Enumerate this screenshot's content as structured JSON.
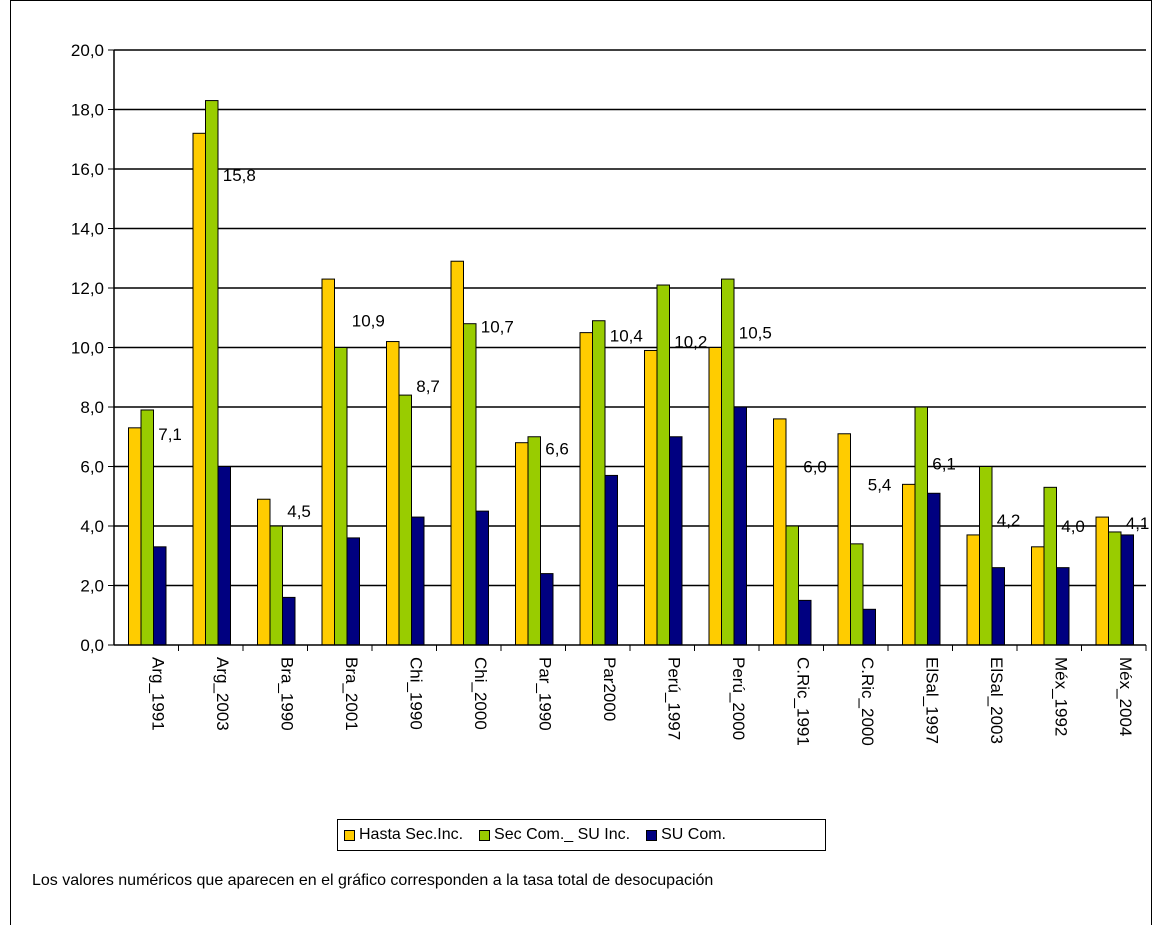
{
  "chart_data": {
    "type": "bar",
    "title": "",
    "xlabel": "",
    "ylabel": "",
    "ylim": [
      0,
      20
    ],
    "yticks": [
      "0,0",
      "2,0",
      "4,0",
      "6,0",
      "8,0",
      "10,0",
      "12,0",
      "14,0",
      "16,0",
      "18,0",
      "20,0"
    ],
    "grid": true,
    "legend_position": "bottom",
    "categories": [
      "Arg_1991",
      "Arg_2003",
      "Bra_1990",
      "Bra_2001",
      "Chi_1990",
      "Chi_2000",
      "Par_1990",
      "Par2000",
      "Perú_1997",
      "Perú_2000",
      "C.Ric_1991",
      "C.Ric_2000",
      "ElSal_1997",
      "ElSal_2003",
      "Méx_1992",
      "Méx_2004"
    ],
    "series": [
      {
        "name": "Hasta Sec.Inc.",
        "color": "#FFCC00",
        "values": [
          7.3,
          17.2,
          4.9,
          12.3,
          10.2,
          12.9,
          6.8,
          10.5,
          9.9,
          10.0,
          7.6,
          7.1,
          5.4,
          3.7,
          3.3,
          4.3
        ]
      },
      {
        "name": "Sec Com._ SU Inc.",
        "color": "#99CC00",
        "values": [
          7.9,
          18.3,
          4.0,
          10.0,
          8.4,
          10.8,
          7.0,
          10.9,
          12.1,
          12.3,
          4.0,
          3.4,
          8.0,
          6.0,
          5.3,
          3.8
        ]
      },
      {
        "name": "SU Com.",
        "color": "#000080",
        "values": [
          3.3,
          6.0,
          1.6,
          3.6,
          4.3,
          4.5,
          2.4,
          5.7,
          7.0,
          8.0,
          1.5,
          1.2,
          5.1,
          2.6,
          2.6,
          3.7
        ]
      }
    ],
    "data_labels": [
      "7,1",
      "15,8",
      "4,5",
      "10,9",
      "8,7",
      "10,7",
      "6,6",
      "10,4",
      "10,2",
      "10,5",
      "6,0",
      "5,4",
      "6,1",
      "4,2",
      "4,0",
      "4,1"
    ],
    "data_label_values": [
      7.1,
      15.8,
      4.5,
      10.9,
      8.7,
      10.7,
      6.6,
      10.4,
      10.2,
      10.5,
      6.0,
      5.4,
      6.1,
      4.2,
      4.0,
      4.1
    ]
  },
  "footnote": "Los valores numéricos que aparecen en el gráfico corresponden a la tasa total de desocupación"
}
